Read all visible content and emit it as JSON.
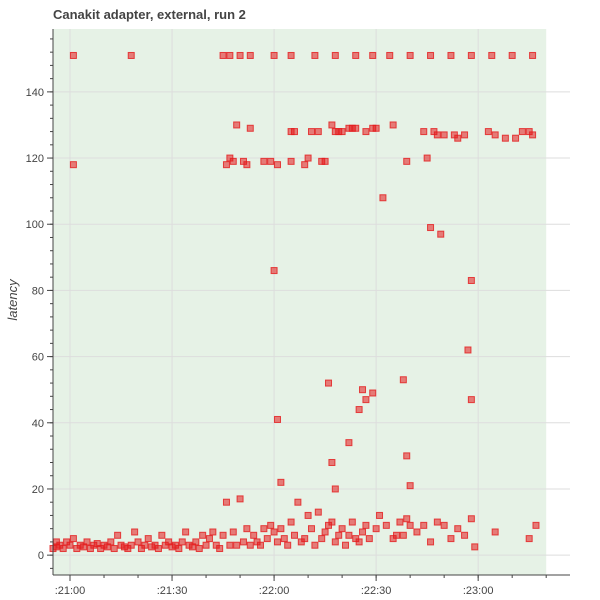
{
  "chart_data": {
    "type": "scatter",
    "title": "Canakit adapter, external, run 2",
    "xlabel": "",
    "ylabel": "latency",
    "xlim": [
      "20:55",
      "23:27"
    ],
    "ylim": [
      -6,
      159
    ],
    "x_unit": "time of day (HH:MM)",
    "x_ticks": [
      ":21:00",
      ":21:30",
      ":22:00",
      ":22:30",
      ":23:00"
    ],
    "y_ticks": [
      "0",
      "20",
      "40",
      "60",
      "80",
      "100",
      "120",
      "140"
    ],
    "grid": true,
    "shaded_region": {
      "from": "20:55",
      "to": "23:20",
      "color": "#e6f2e6"
    },
    "marker_color": "#e31a1c",
    "series": [
      {
        "points": [
          [
            "20:55",
            2
          ],
          [
            "20:56",
            4
          ],
          [
            "20:56",
            2.5
          ],
          [
            "20:57",
            3
          ],
          [
            "20:58",
            2
          ],
          [
            "20:59",
            4
          ],
          [
            "21:00",
            3
          ],
          [
            "21:01",
            5
          ],
          [
            "21:02",
            2
          ],
          [
            "21:03",
            3
          ],
          [
            "21:04",
            2.5
          ],
          [
            "21:05",
            4
          ],
          [
            "21:06",
            2
          ],
          [
            "21:07",
            3
          ],
          [
            "21:08",
            3.5
          ],
          [
            "21:09",
            2
          ],
          [
            "21:10",
            3
          ],
          [
            "21:11",
            2.5
          ],
          [
            "21:12",
            4
          ],
          [
            "21:13",
            2
          ],
          [
            "21:14",
            6
          ],
          [
            "21:15",
            3
          ],
          [
            "21:16",
            2.5
          ],
          [
            "21:17",
            2
          ],
          [
            "21:18",
            3
          ],
          [
            "21:19",
            7
          ],
          [
            "21:20",
            4
          ],
          [
            "21:21",
            2
          ],
          [
            "21:22",
            3
          ],
          [
            "21:23",
            5
          ],
          [
            "21:24",
            2.5
          ],
          [
            "21:25",
            3
          ],
          [
            "21:26",
            2
          ],
          [
            "21:27",
            6
          ],
          [
            "21:28",
            3
          ],
          [
            "21:29",
            4
          ],
          [
            "21:30",
            2.5
          ],
          [
            "21:31",
            3
          ],
          [
            "21:32",
            2
          ],
          [
            "21:33",
            4
          ],
          [
            "21:34",
            7
          ],
          [
            "21:35",
            3
          ],
          [
            "21:36",
            2.5
          ],
          [
            "21:37",
            4
          ],
          [
            "21:38",
            2
          ],
          [
            "21:39",
            6
          ],
          [
            "21:40",
            3
          ],
          [
            "21:41",
            5
          ],
          [
            "21:42",
            7
          ],
          [
            "21:43",
            3
          ],
          [
            "21:44",
            2
          ],
          [
            "21:45",
            6
          ],
          [
            "21:46",
            16
          ],
          [
            "21:47",
            3
          ],
          [
            "21:48",
            7
          ],
          [
            "21:49",
            3
          ],
          [
            "21:50",
            17
          ],
          [
            "21:51",
            4
          ],
          [
            "21:52",
            8
          ],
          [
            "21:53",
            3
          ],
          [
            "21:54",
            6
          ],
          [
            "21:55",
            4
          ],
          [
            "21:56",
            3
          ],
          [
            "21:57",
            8
          ],
          [
            "21:58",
            5
          ],
          [
            "21:59",
            9
          ],
          [
            "22:00",
            7
          ],
          [
            "22:01",
            4
          ],
          [
            "22:02",
            8
          ],
          [
            "22:03",
            5
          ],
          [
            "22:04",
            3
          ],
          [
            "22:05",
            10
          ],
          [
            "22:06",
            6
          ],
          [
            "22:07",
            16
          ],
          [
            "22:08",
            4
          ],
          [
            "22:09",
            5
          ],
          [
            "22:10",
            12
          ],
          [
            "22:11",
            8
          ],
          [
            "22:12",
            3
          ],
          [
            "22:13",
            13
          ],
          [
            "22:14",
            5
          ],
          [
            "22:15",
            7
          ],
          [
            "22:16",
            9
          ],
          [
            "22:17",
            10
          ],
          [
            "22:18",
            4
          ],
          [
            "22:19",
            6
          ],
          [
            "22:20",
            8
          ],
          [
            "22:21",
            3
          ],
          [
            "22:22",
            6
          ],
          [
            "22:23",
            10
          ],
          [
            "22:24",
            5
          ],
          [
            "22:25",
            4
          ],
          [
            "22:26",
            7
          ],
          [
            "22:27",
            9
          ],
          [
            "22:28",
            5
          ],
          [
            "22:30",
            8
          ],
          [
            "22:31",
            12
          ],
          [
            "22:33",
            9
          ],
          [
            "22:35",
            5
          ],
          [
            "22:36",
            6
          ],
          [
            "22:37",
            10
          ],
          [
            "22:38",
            6
          ],
          [
            "22:39",
            11
          ],
          [
            "22:40",
            9
          ],
          [
            "22:42",
            7
          ],
          [
            "22:44",
            9
          ],
          [
            "22:46",
            4
          ],
          [
            "22:48",
            10
          ],
          [
            "22:50",
            9
          ],
          [
            "22:52",
            5
          ],
          [
            "22:54",
            8
          ],
          [
            "22:56",
            6
          ],
          [
            "22:58",
            11
          ],
          [
            "22:59",
            2.5
          ],
          [
            "23:05",
            7
          ],
          [
            "23:15",
            5
          ],
          [
            "23:17",
            9
          ],
          [
            "21:01",
            118
          ],
          [
            "21:46",
            118
          ],
          [
            "21:47",
            120
          ],
          [
            "21:48",
            119
          ],
          [
            "21:51",
            119
          ],
          [
            "21:52",
            118
          ],
          [
            "21:57",
            119
          ],
          [
            "21:59",
            119
          ],
          [
            "22:01",
            118
          ],
          [
            "22:05",
            119
          ],
          [
            "22:09",
            118
          ],
          [
            "22:10",
            120
          ],
          [
            "22:14",
            119
          ],
          [
            "22:15",
            119
          ],
          [
            "22:20",
            128
          ],
          [
            "22:18",
            128
          ],
          [
            "22:23",
            129
          ],
          [
            "22:24",
            129
          ],
          [
            "22:27",
            128
          ],
          [
            "22:29",
            129
          ],
          [
            "21:49",
            130
          ],
          [
            "21:53",
            129
          ],
          [
            "22:05",
            128
          ],
          [
            "22:06",
            128
          ],
          [
            "22:11",
            128
          ],
          [
            "22:13",
            128
          ],
          [
            "22:17",
            130
          ],
          [
            "22:19",
            128
          ],
          [
            "22:22",
            129
          ],
          [
            "22:30",
            129
          ],
          [
            "22:35",
            130
          ],
          [
            "22:39",
            119
          ],
          [
            "22:44",
            128
          ],
          [
            "22:45",
            120
          ],
          [
            "22:47",
            128
          ],
          [
            "22:48",
            127
          ],
          [
            "22:50",
            127
          ],
          [
            "22:53",
            127
          ],
          [
            "22:54",
            126
          ],
          [
            "22:56",
            127
          ],
          [
            "23:03",
            128
          ],
          [
            "23:05",
            127
          ],
          [
            "23:08",
            126
          ],
          [
            "23:11",
            126
          ],
          [
            "23:13",
            128
          ],
          [
            "23:15",
            128
          ],
          [
            "23:16",
            127
          ],
          [
            "21:01",
            151
          ],
          [
            "21:18",
            151
          ],
          [
            "21:45",
            151
          ],
          [
            "21:47",
            151
          ],
          [
            "21:50",
            151
          ],
          [
            "21:53",
            151
          ],
          [
            "22:00",
            151
          ],
          [
            "22:05",
            151
          ],
          [
            "22:12",
            151
          ],
          [
            "22:18",
            151
          ],
          [
            "22:24",
            151
          ],
          [
            "22:29",
            151
          ],
          [
            "22:34",
            151
          ],
          [
            "22:40",
            151
          ],
          [
            "22:46",
            151
          ],
          [
            "22:52",
            151
          ],
          [
            "22:58",
            151
          ],
          [
            "23:04",
            151
          ],
          [
            "23:10",
            151
          ],
          [
            "23:16",
            151
          ],
          [
            "22:00",
            86
          ],
          [
            "22:01",
            41
          ],
          [
            "22:02",
            22
          ],
          [
            "22:16",
            52
          ],
          [
            "22:17",
            28
          ],
          [
            "22:18",
            20
          ],
          [
            "22:22",
            34
          ],
          [
            "22:25",
            44
          ],
          [
            "22:26",
            50
          ],
          [
            "22:27",
            47
          ],
          [
            "22:29",
            49
          ],
          [
            "22:32",
            108
          ],
          [
            "22:38",
            53
          ],
          [
            "22:39",
            30
          ],
          [
            "22:40",
            21
          ],
          [
            "22:46",
            99
          ],
          [
            "22:49",
            97
          ],
          [
            "22:57",
            62
          ],
          [
            "22:58",
            47
          ],
          [
            "22:58",
            83
          ]
        ]
      }
    ]
  }
}
